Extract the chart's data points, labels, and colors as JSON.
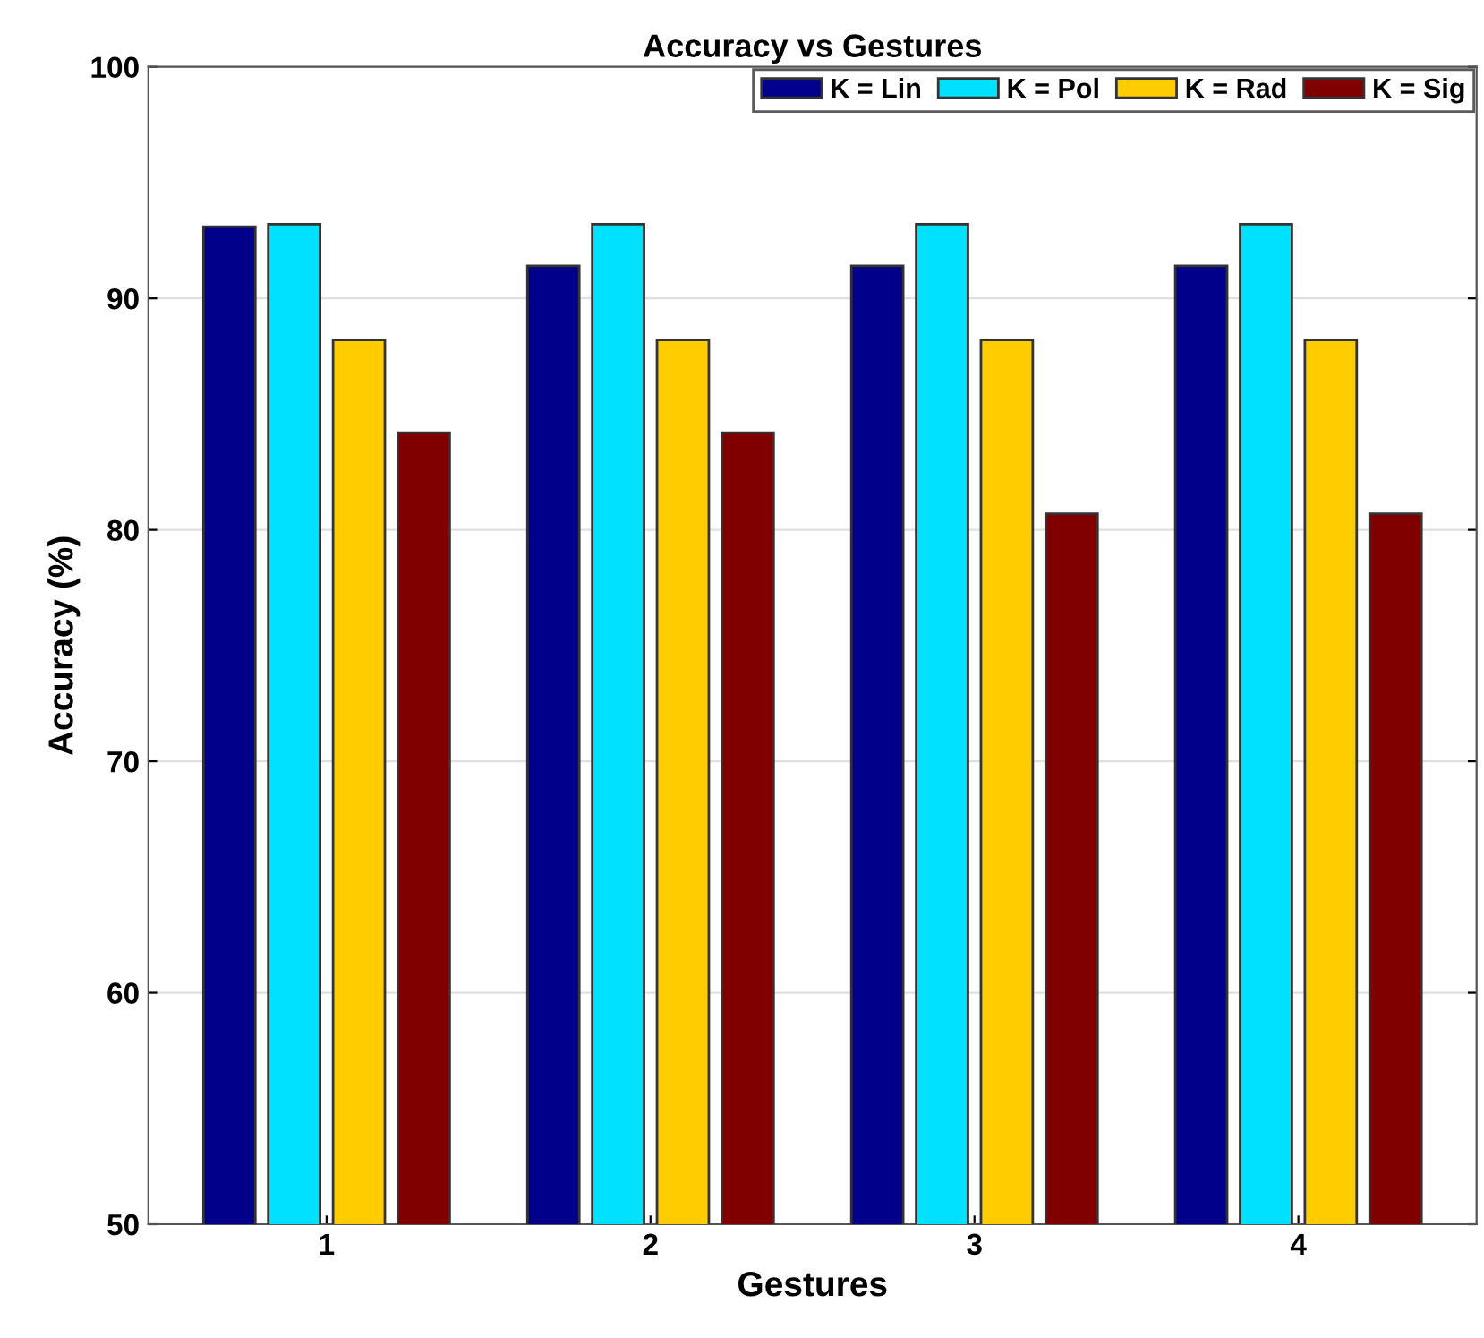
{
  "chart_data": {
    "type": "bar",
    "title": "Accuracy vs Gestures",
    "xlabel": "Gestures",
    "ylabel": "Accuracy (%)",
    "categories": [
      "1",
      "2",
      "3",
      "4"
    ],
    "series": [
      {
        "name": "K = Lin",
        "color": "#00008b",
        "values": [
          93.1,
          91.4,
          91.4,
          91.4
        ]
      },
      {
        "name": "K = Pol",
        "color": "#00e1ff",
        "values": [
          93.2,
          93.2,
          93.2,
          93.2
        ]
      },
      {
        "name": "K = Rad",
        "color": "#ffcc00",
        "values": [
          88.2,
          88.2,
          88.2,
          88.2
        ]
      },
      {
        "name": "K = Sig",
        "color": "#800000",
        "values": [
          84.2,
          84.2,
          80.7,
          80.7
        ]
      }
    ],
    "ylim": [
      50,
      100
    ],
    "yticks": [
      50,
      60,
      70,
      80,
      90,
      100
    ],
    "grid": "y",
    "legend": "top right"
  }
}
